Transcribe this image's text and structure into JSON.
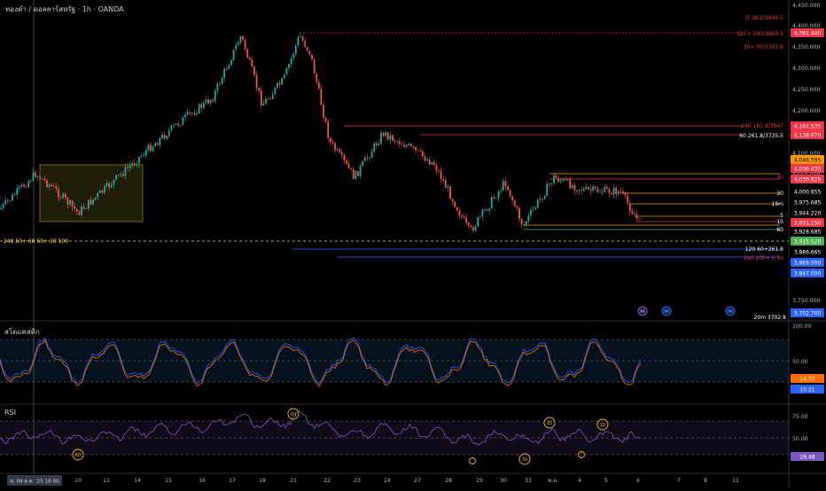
{
  "header": {
    "symbol": "ทองคำ / ดอลลาร์สหรัฐ · 1h · OANDA"
  },
  "colors": {
    "up": "#26a69a",
    "down": "#ef5350",
    "stoch_k": "#2962ff",
    "stoch_d": "#ff6d00",
    "rsi": "#7e57c2",
    "accent_red": "#f23645",
    "accent_orange": "#ff9800",
    "accent_yellow": "#ffeb3b",
    "accent_blue": "#2962ff",
    "accent_green": "#4caf50"
  },
  "price_axis": {
    "ticks": [
      "4,450.000",
      "4,400.000",
      "4,350.000",
      "4,300.000",
      "4,250.000",
      "4,200.000",
      "4,150.000",
      "4,100.000",
      "4,050.000",
      "3,750.000"
    ]
  },
  "price_badges": [
    {
      "text": "4,381.440",
      "bg": "#f23645",
      "fg": "#ffffff"
    },
    {
      "text": "4,161.535",
      "bg": "#f23645",
      "fg": "#ffffff"
    },
    {
      "text": "4,138.670",
      "bg": "#f23645",
      "fg": "#ffffff"
    },
    {
      "text": "4,046.595",
      "bg": "#ff9800",
      "fg": "#000000"
    },
    {
      "text": "4,036.435",
      "bg": "#f23645",
      "fg": "#ffffff"
    },
    {
      "text": "4,030.825",
      "bg": "#f23645",
      "fg": "#ffffff"
    },
    {
      "text": "4,000.855",
      "bg": "#000000",
      "fg": "#ffffff"
    },
    {
      "text": "3,975.685",
      "bg": "#000000",
      "fg": "#ffffff"
    },
    {
      "text": "3,944.220",
      "bg": "#000000",
      "fg": "#ffffff"
    },
    {
      "text": "3,931.150",
      "bg": "#f23645",
      "fg": "#ffffff"
    },
    {
      "text": "3,928.685",
      "bg": "#000000",
      "fg": "#ffffff"
    },
    {
      "text": "3,915.520",
      "bg": "#4caf50",
      "fg": "#ffffff"
    },
    {
      "text": "3,886.665",
      "bg": "#000000",
      "fg": "#ffffff"
    },
    {
      "text": "3,869.500",
      "bg": "#2962ff",
      "fg": "#ffffff"
    },
    {
      "text": "3,847.000",
      "bg": "#2962ff",
      "fg": "#ffffff"
    },
    {
      "text": "3,702.700",
      "bg": "#2962ff",
      "fg": "#ffffff"
    }
  ],
  "level_labels": [
    {
      "text": "D 38.2/3846.5",
      "color": "#f23645"
    },
    {
      "text": "120+ 200/3869.5",
      "color": "#f23645"
    },
    {
      "text": "30+ 00/3702.6",
      "color": "#f23645"
    },
    {
      "text": "240 161.8/3847",
      "color": "#f23645"
    },
    {
      "text": "60 261.8/3735.5",
      "color": "#ffffff"
    },
    {
      "text": "30",
      "color": "#f23645"
    },
    {
      "text": "30",
      "color": "#ffffff"
    },
    {
      "text": "15m",
      "color": "#ffffff"
    },
    {
      "text": "5",
      "color": "#ffffff"
    },
    {
      "text": "15",
      "color": "#ffffff"
    },
    {
      "text": "60",
      "color": "#ffffff"
    },
    {
      "text": "120 60+261.8",
      "color": "#ffffff"
    },
    {
      "text": "240 200+ 0.50",
      "color": "#f23645"
    },
    {
      "text": "240 50+ 60 50+ 30 100",
      "color": "#ffeb3b"
    },
    {
      "text": "20m 3702.8",
      "color": "#ffffff"
    }
  ],
  "stoch": {
    "label": "สโตแคสติก",
    "ticks": [
      "100.00",
      "50.00"
    ],
    "badge_k": "14.72",
    "badge_d": "10.21"
  },
  "rsi": {
    "label": "RSI",
    "ticks": [
      "75.00",
      "50.00"
    ],
    "badge": "28.48",
    "markers": [
      {
        "text": "60"
      },
      {
        "text": "60"
      },
      {
        "text": "15"
      },
      {
        "text": "15"
      },
      {
        "text": "30"
      },
      {
        "text": ""
      },
      {
        "text": ""
      }
    ]
  },
  "time_axis": {
    "labels": [
      "10",
      "11",
      "14",
      "15",
      "16",
      "17",
      "18",
      "21",
      "22",
      "23",
      "24",
      "27",
      "28",
      "29",
      "30",
      "31",
      "พ.ย.",
      "4",
      "5",
      "6",
      "7",
      "8",
      "11"
    ],
    "cursor_label": "พ. 08 ต.ค. '25 18:00"
  }
}
